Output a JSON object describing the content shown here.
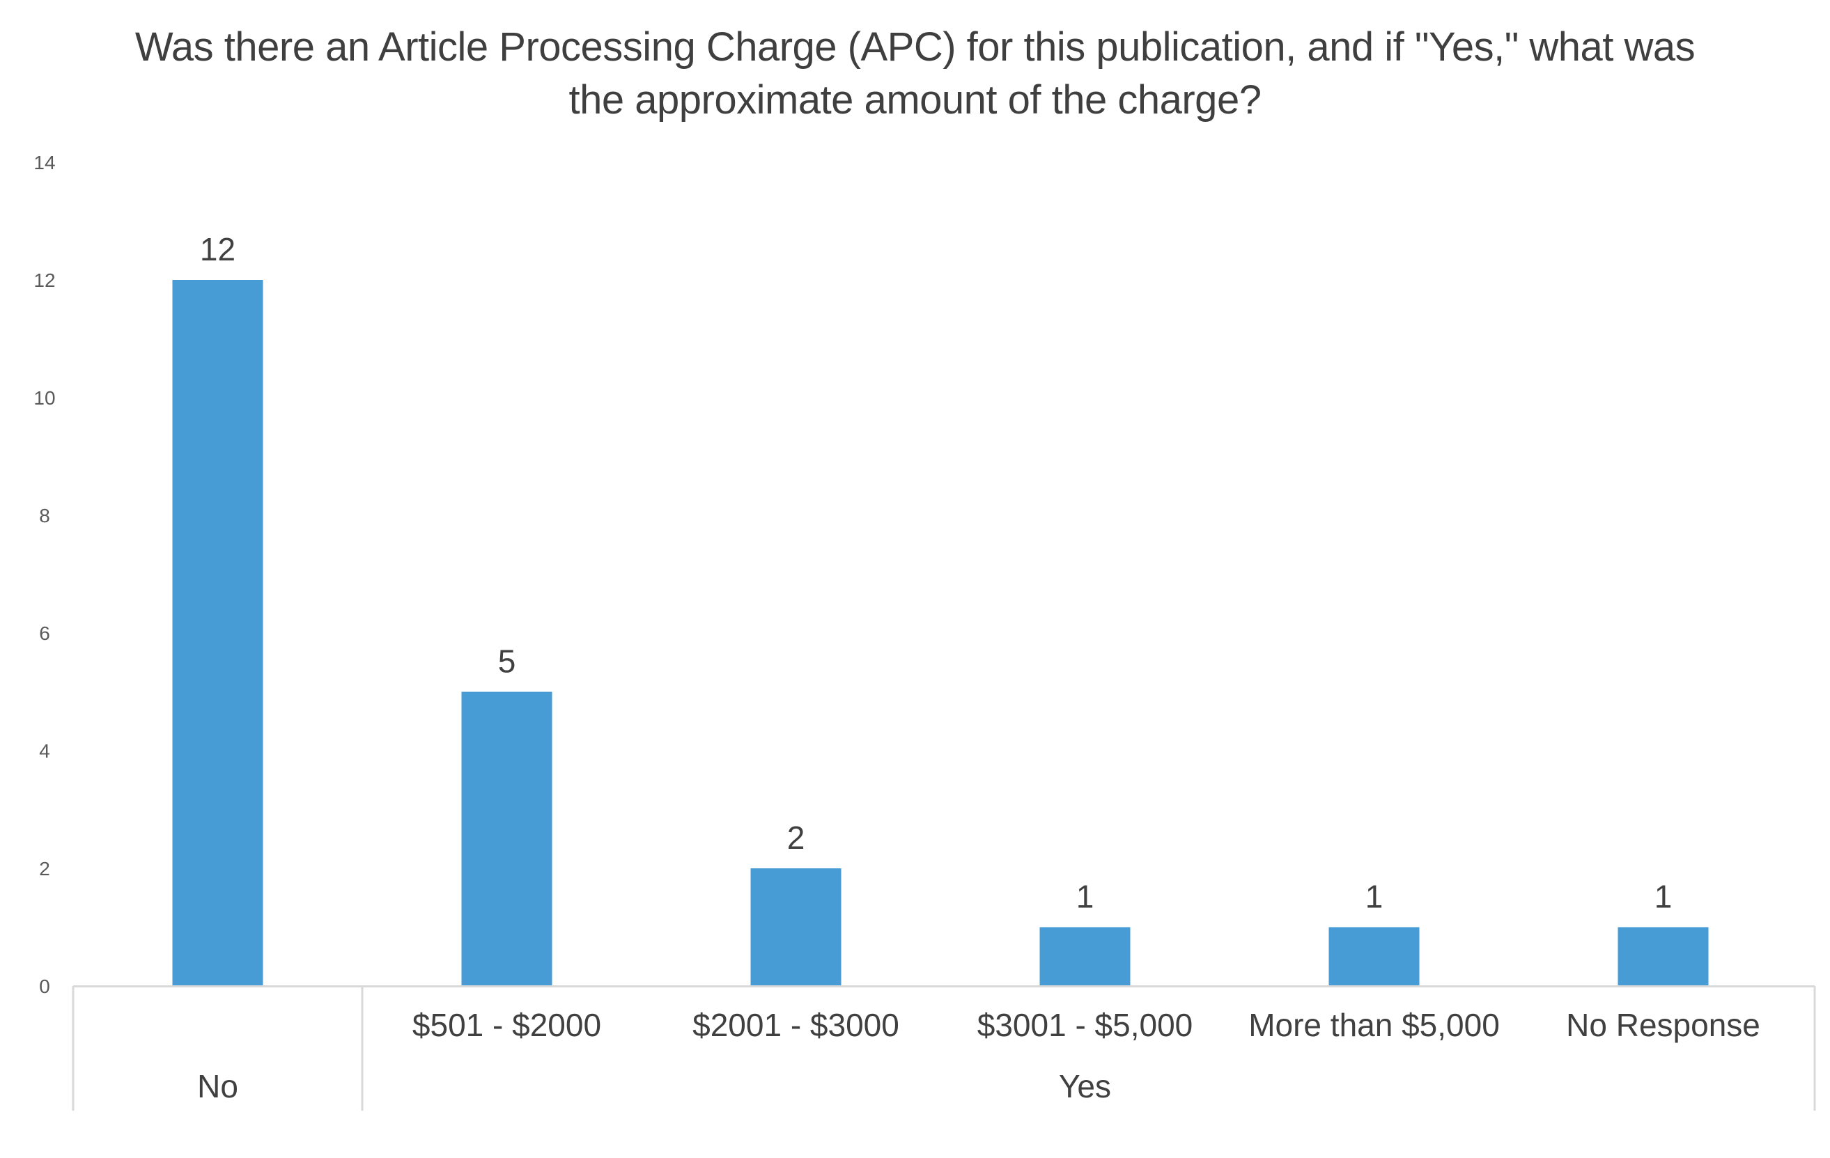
{
  "chart_data": {
    "type": "bar",
    "title_lines": [
      "Was there an Article Processing Charge (APC) for this publication, and if \"Yes,\" what was",
      "the approximate amount of the charge?"
    ],
    "categories": [
      "",
      "$501 - $2000",
      "$2001 - $3000",
      "$3001 - $5,000",
      "More than $5,000",
      "No Response"
    ],
    "groups": [
      {
        "label": "No",
        "span": [
          0,
          0
        ]
      },
      {
        "label": "Yes",
        "span": [
          1,
          5
        ]
      }
    ],
    "values": [
      12,
      5,
      2,
      1,
      1,
      1
    ],
    "data_labels": [
      "12",
      "5",
      "2",
      "1",
      "1",
      "1"
    ],
    "yticks": [
      "0",
      "2",
      "4",
      "6",
      "8",
      "10",
      "12",
      "14"
    ],
    "ylim": [
      0,
      14
    ],
    "grid": false,
    "legend": "none",
    "bar_color": "#479cd5",
    "axis_color": "#d9d9d9"
  }
}
